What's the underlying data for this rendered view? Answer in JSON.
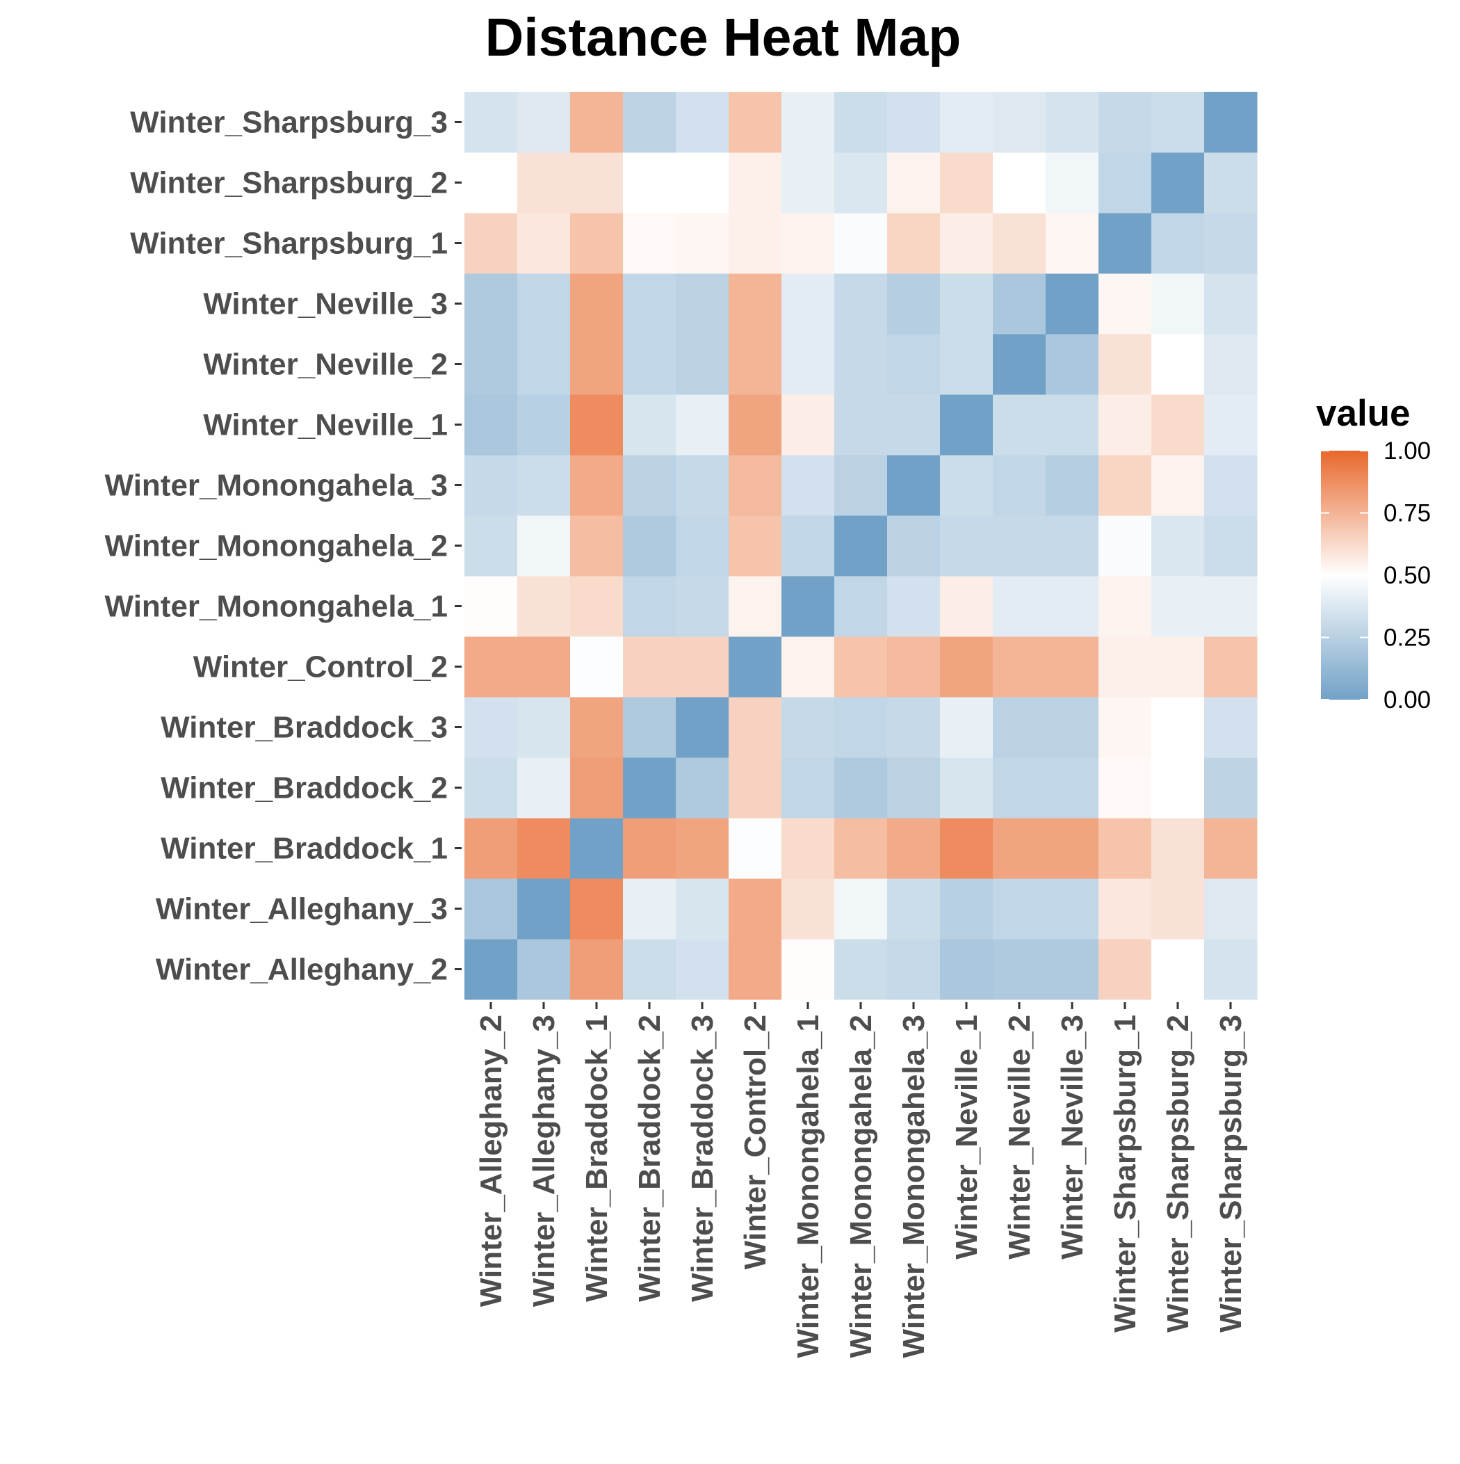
{
  "chart_data": {
    "type": "heatmap",
    "title": "Distance Heat Map",
    "xlabel": "",
    "ylabel": "",
    "x_categories": [
      "Winter_Alleghany_2",
      "Winter_Alleghany_3",
      "Winter_Braddock_1",
      "Winter_Braddock_2",
      "Winter_Braddock_3",
      "Winter_Control_2",
      "Winter_Monongahela_1",
      "Winter_Monongahela_2",
      "Winter_Monongahela_3",
      "Winter_Neville_1",
      "Winter_Neville_2",
      "Winter_Neville_3",
      "Winter_Sharpsburg_1",
      "Winter_Sharpsburg_2",
      "Winter_Sharpsburg_3"
    ],
    "y_categories": [
      "Winter_Alleghany_2",
      "Winter_Alleghany_3",
      "Winter_Braddock_1",
      "Winter_Braddock_2",
      "Winter_Braddock_3",
      "Winter_Control_2",
      "Winter_Monongahela_1",
      "Winter_Monongahela_2",
      "Winter_Monongahela_3",
      "Winter_Neville_1",
      "Winter_Neville_2",
      "Winter_Neville_3",
      "Winter_Sharpsburg_1",
      "Winter_Sharpsburg_2",
      "Winter_Sharpsburg_3"
    ],
    "values": [
      [
        0.0,
        0.2,
        0.82,
        0.32,
        0.34,
        0.78,
        0.51,
        0.32,
        0.3,
        0.2,
        0.22,
        0.22,
        0.65,
        0.5,
        0.35
      ],
      [
        0.2,
        0.0,
        0.88,
        0.42,
        0.36,
        0.78,
        0.6,
        0.45,
        0.32,
        0.25,
        0.28,
        0.28,
        0.58,
        0.6,
        0.38
      ],
      [
        0.82,
        0.88,
        0.0,
        0.82,
        0.8,
        0.49,
        0.62,
        0.72,
        0.78,
        0.88,
        0.8,
        0.8,
        0.7,
        0.6,
        0.75
      ],
      [
        0.32,
        0.42,
        0.82,
        0.0,
        0.22,
        0.65,
        0.28,
        0.22,
        0.26,
        0.36,
        0.28,
        0.28,
        0.52,
        0.5,
        0.27
      ],
      [
        0.34,
        0.36,
        0.8,
        0.22,
        0.0,
        0.65,
        0.3,
        0.28,
        0.3,
        0.42,
        0.26,
        0.26,
        0.53,
        0.5,
        0.34
      ],
      [
        0.78,
        0.78,
        0.49,
        0.65,
        0.65,
        0.0,
        0.54,
        0.7,
        0.73,
        0.8,
        0.75,
        0.75,
        0.55,
        0.55,
        0.7
      ],
      [
        0.51,
        0.6,
        0.62,
        0.28,
        0.3,
        0.54,
        0.0,
        0.28,
        0.34,
        0.56,
        0.4,
        0.4,
        0.54,
        0.42,
        0.42
      ],
      [
        0.32,
        0.45,
        0.72,
        0.22,
        0.28,
        0.7,
        0.28,
        0.0,
        0.26,
        0.3,
        0.3,
        0.3,
        0.48,
        0.37,
        0.32
      ],
      [
        0.3,
        0.32,
        0.78,
        0.26,
        0.3,
        0.73,
        0.34,
        0.26,
        0.0,
        0.32,
        0.28,
        0.24,
        0.64,
        0.54,
        0.34
      ],
      [
        0.2,
        0.25,
        0.88,
        0.36,
        0.42,
        0.8,
        0.56,
        0.3,
        0.3,
        0.0,
        0.32,
        0.32,
        0.56,
        0.62,
        0.4
      ],
      [
        0.22,
        0.28,
        0.8,
        0.28,
        0.26,
        0.75,
        0.4,
        0.3,
        0.28,
        0.32,
        0.0,
        0.2,
        0.6,
        0.5,
        0.38
      ],
      [
        0.22,
        0.28,
        0.8,
        0.28,
        0.26,
        0.75,
        0.4,
        0.3,
        0.24,
        0.32,
        0.2,
        0.0,
        0.53,
        0.45,
        0.35
      ],
      [
        0.65,
        0.58,
        0.7,
        0.52,
        0.53,
        0.55,
        0.54,
        0.48,
        0.64,
        0.56,
        0.6,
        0.53,
        0.0,
        0.28,
        0.3
      ],
      [
        0.5,
        0.6,
        0.6,
        0.5,
        0.5,
        0.55,
        0.42,
        0.37,
        0.54,
        0.62,
        0.5,
        0.45,
        0.28,
        0.0,
        0.32
      ],
      [
        0.35,
        0.38,
        0.75,
        0.27,
        0.34,
        0.7,
        0.42,
        0.32,
        0.34,
        0.4,
        0.38,
        0.35,
        0.3,
        0.32,
        0.0
      ]
    ],
    "scale": {
      "min": 0.0,
      "max": 1.0,
      "low_color": "#71A1C6",
      "mid_color": "#FFFFFF",
      "high_color": "#E8682C"
    },
    "legend": {
      "title": "value",
      "position": "right",
      "ticks": [
        "1.00",
        "0.75",
        "0.50",
        "0.25",
        "0.00"
      ]
    },
    "grid": false
  }
}
